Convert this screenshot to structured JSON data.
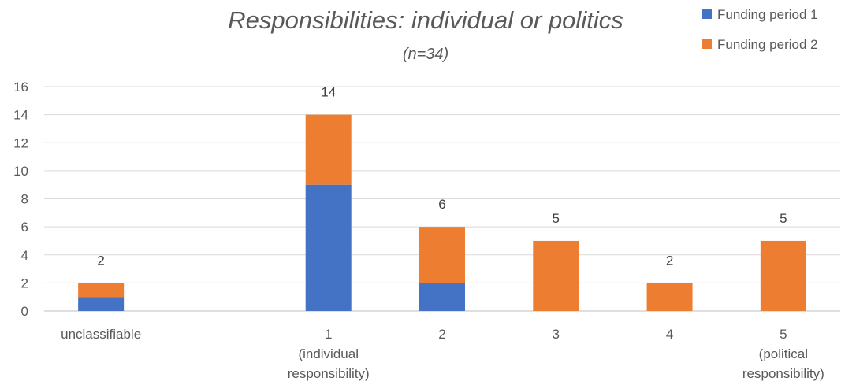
{
  "chart_data": {
    "type": "bar",
    "stacked": true,
    "title": "Responsibilities: individual or politics",
    "subtitle": "(n=34)",
    "categories": [
      [
        "unclassifiable"
      ],
      [],
      [
        "1",
        "(individual",
        "responsibility)"
      ],
      [
        "2"
      ],
      [
        "3"
      ],
      [
        "4"
      ],
      [
        "5",
        "(political",
        "responsibility)"
      ]
    ],
    "series": [
      {
        "name": "Funding period 1",
        "color": "#4472C4",
        "values": [
          1,
          0,
          9,
          2,
          0,
          0,
          0
        ]
      },
      {
        "name": "Funding period 2",
        "color": "#ED7D31",
        "values": [
          1,
          0,
          5,
          4,
          5,
          2,
          5
        ]
      }
    ],
    "totals": [
      2,
      null,
      14,
      6,
      5,
      2,
      5
    ],
    "ylim": [
      0,
      16
    ],
    "yticks": [
      0,
      2,
      4,
      6,
      8,
      10,
      12,
      14,
      16
    ],
    "grid": true,
    "legend_position": "top-right"
  }
}
